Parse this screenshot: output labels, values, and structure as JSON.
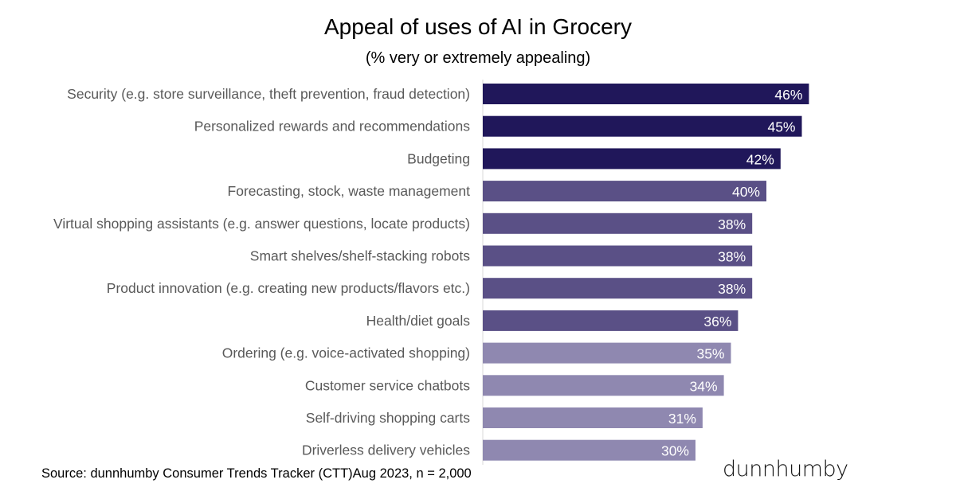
{
  "chart_data": {
    "type": "bar",
    "orientation": "horizontal",
    "title": "Appeal of uses of AI in Grocery",
    "subtitle": "(% very or extremely appealing)",
    "categories": [
      "Security (e.g. store surveillance, theft prevention, fraud detection)",
      "Personalized rewards and recommendations",
      "Budgeting",
      "Forecasting, stock, waste management",
      "Virtual shopping assistants (e.g. answer questions, locate products)",
      "Smart shelves/shelf-stacking robots",
      "Product innovation (e.g. creating new products/flavors etc.)",
      "Health/diet goals",
      "Ordering (e.g. voice-activated shopping)",
      "Customer service chatbots",
      "Self-driving shopping carts",
      "Driverless delivery vehicles"
    ],
    "values": [
      46,
      45,
      42,
      40,
      38,
      38,
      38,
      36,
      35,
      34,
      31,
      30
    ],
    "data_labels": [
      "46%",
      "45%",
      "42%",
      "40%",
      "38%",
      "38%",
      "38%",
      "36%",
      "35%",
      "34%",
      "31%",
      "30%"
    ],
    "bar_colors": [
      "#20175a",
      "#20175a",
      "#20175a",
      "#5a5086",
      "#5a5086",
      "#5a5086",
      "#5a5086",
      "#5a5086",
      "#8f88b0",
      "#8f88b0",
      "#8f88b0",
      "#8f88b0"
    ],
    "xlim": [
      0,
      50
    ],
    "grid": false
  },
  "source": "Source: dunnhumby Consumer Trends Tracker (CTT)Aug 2023, n = 2,000",
  "logo": "dunnhumby"
}
